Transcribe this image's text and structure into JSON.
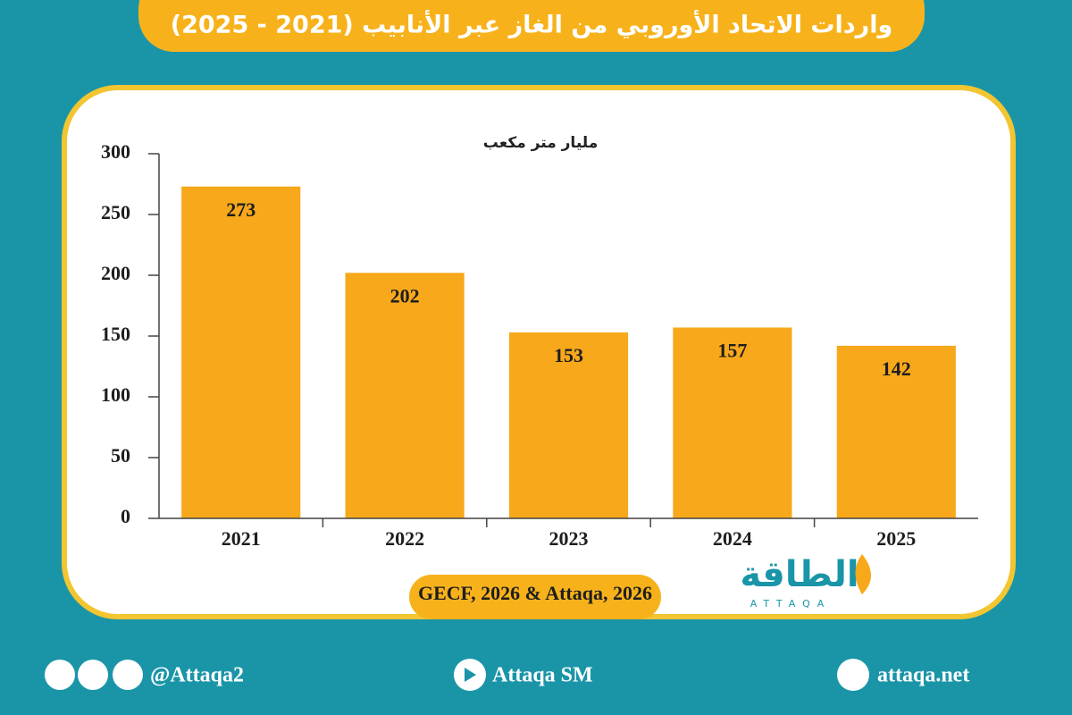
{
  "chart_data": {
    "type": "bar",
    "title": "واردات الاتحاد الأوروبي من الغاز عبر الأنابيب (2021 - 2025)",
    "y_label": "مليار متر مكعب",
    "categories": [
      "2021",
      "2022",
      "2023",
      "2024",
      "2025"
    ],
    "values": [
      273,
      202,
      153,
      157,
      142
    ],
    "color": "#f7a81b",
    "ylim": [
      0,
      300
    ],
    "yticks": [
      0,
      50,
      100,
      150,
      200,
      250,
      300
    ],
    "grid": false,
    "source": "GECF, 2026 & Attaqa, 2026"
  },
  "logo": {
    "name": "الطاقة",
    "latin": "ATTAQA"
  },
  "footer": {
    "social_handle": "@Attaqa2",
    "youtube": "Attaqa SM",
    "website": "attaqa.net"
  }
}
